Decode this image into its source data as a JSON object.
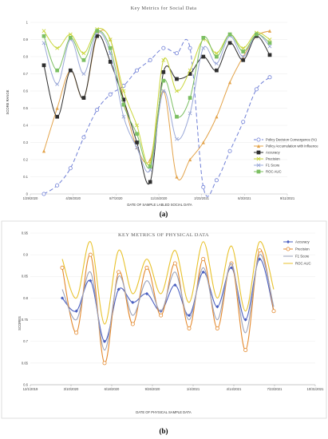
{
  "chart_data": [
    {
      "type": "line",
      "panel_label": "(a)",
      "title": "Key Metrics for Social Data",
      "xlabel": "DATE OF SAMPLE LABLED SOCIAL DATA",
      "ylabel": "SCORE RANGE",
      "x_ticks": [
        "1/29/2020",
        "4/28/2020",
        "8/7/2020",
        "11/15/2020",
        "2/23/2021",
        "6/3/2021",
        "9/11/2021"
      ],
      "y_ticks": [
        "0",
        "0.1",
        "0.2",
        "0.3",
        "0.4",
        "0.5",
        "0.6",
        "0.7",
        "0.8",
        "0.9",
        "1"
      ],
      "ylim": [
        0,
        1
      ],
      "legend_position": "right",
      "series": [
        {
          "name": "Policy Decision Convergence (%)",
          "color": "#6f7fd6",
          "marker": "circle",
          "dash": "5,3",
          "values": [
            0.0,
            0.05,
            0.15,
            0.33,
            0.49,
            0.58,
            0.63,
            0.72,
            0.78,
            0.85,
            0.82,
            0.85,
            0.04,
            0.08,
            0.25,
            0.42,
            0.61,
            0.68
          ]
        },
        {
          "name": "Policy Accumulation with Influence",
          "color": "#e3a34a",
          "marker": "triangle",
          "values": [
            0.25,
            0.5,
            0.72,
            0.56,
            0.92,
            0.9,
            0.55,
            0.27,
            0.2,
            0.6,
            0.1,
            0.2,
            0.3,
            0.45,
            0.65,
            0.8,
            0.92,
            0.95
          ]
        },
        {
          "name": "Accuracy",
          "color": "#2e2e2e",
          "marker": "square",
          "values": [
            0.75,
            0.45,
            0.72,
            0.56,
            0.92,
            0.77,
            0.55,
            0.3,
            0.07,
            0.71,
            0.67,
            0.7,
            0.8,
            0.72,
            0.88,
            0.78,
            0.92,
            0.81
          ]
        },
        {
          "name": "Precision",
          "color": "#c9d63a",
          "marker": "x",
          "values": [
            0.95,
            0.85,
            0.93,
            0.82,
            0.96,
            0.9,
            0.6,
            0.4,
            0.18,
            0.78,
            0.6,
            0.72,
            0.9,
            0.82,
            0.93,
            0.85,
            0.94,
            0.9
          ]
        },
        {
          "name": "F1 Score",
          "color": "#9aa8d8",
          "marker": "x",
          "values": [
            0.88,
            0.64,
            0.9,
            0.7,
            0.94,
            0.82,
            0.45,
            0.27,
            0.14,
            0.6,
            0.32,
            0.47,
            0.85,
            0.76,
            0.92,
            0.8,
            0.93,
            0.86
          ]
        },
        {
          "name": "ROC AUC",
          "color": "#7cbf63",
          "marker": "square",
          "values": [
            0.92,
            0.72,
            0.91,
            0.78,
            0.95,
            0.85,
            0.52,
            0.35,
            0.16,
            0.66,
            0.45,
            0.56,
            0.91,
            0.8,
            0.93,
            0.83,
            0.93,
            0.88
          ]
        }
      ]
    },
    {
      "type": "line",
      "panel_label": "(b)",
      "title": "KEY METRICS OF PHYSICAL DATA",
      "xlabel": "DATE OF PHYSICAL SAMPLE DATA",
      "ylabel": "SCORES",
      "x_ticks": [
        "12/1/2019",
        "3/10/2020",
        "6/18/2020",
        "9/26/2020",
        "1/4/2021",
        "4/14/2021",
        "7/23/2021",
        "10/31/2021"
      ],
      "y_ticks": [
        "0.6",
        "0.65",
        "0.7",
        "0.75",
        "0.8",
        "0.85",
        "0.9",
        "0.95"
      ],
      "ylim": [
        0.6,
        0.95
      ],
      "legend_position": "top-right",
      "series": [
        {
          "name": "Accuracy",
          "color": "#4a5fc0",
          "marker": "diamond",
          "values": [
            0.8,
            0.77,
            0.84,
            0.7,
            0.82,
            0.79,
            0.81,
            0.77,
            0.83,
            0.76,
            0.86,
            0.78,
            0.87,
            0.75,
            0.89,
            0.77
          ]
        },
        {
          "name": "Precision",
          "color": "#e3882c",
          "marker": "circle",
          "values": [
            0.87,
            0.72,
            0.9,
            0.65,
            0.86,
            0.74,
            0.87,
            0.76,
            0.88,
            0.73,
            0.89,
            0.73,
            0.88,
            0.68,
            0.91,
            0.77
          ]
        },
        {
          "name": "F1 Score",
          "color": "#9aa0b8",
          "marker": "none",
          "values": [
            0.82,
            0.75,
            0.86,
            0.68,
            0.85,
            0.76,
            0.84,
            0.77,
            0.86,
            0.75,
            0.87,
            0.75,
            0.88,
            0.72,
            0.9,
            0.78
          ]
        },
        {
          "name": "ROC AUC",
          "color": "#e8c22c",
          "marker": "none",
          "values": [
            0.89,
            0.8,
            0.93,
            0.74,
            0.91,
            0.81,
            0.89,
            0.81,
            0.91,
            0.79,
            0.93,
            0.8,
            0.92,
            0.77,
            0.93,
            0.82
          ]
        }
      ]
    }
  ]
}
